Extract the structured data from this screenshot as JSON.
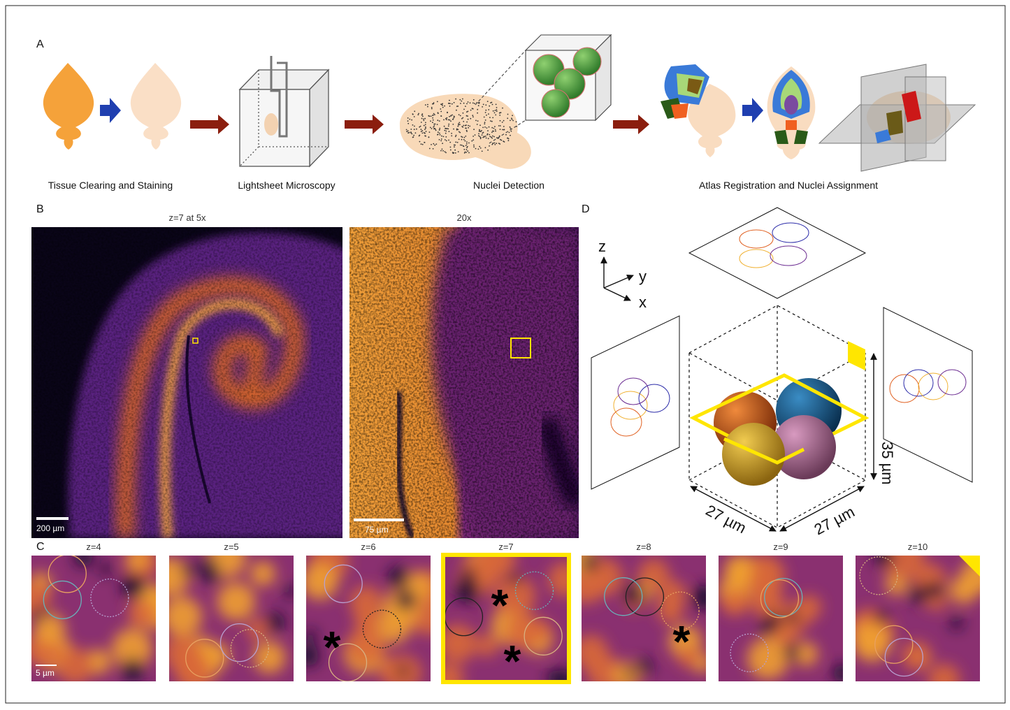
{
  "panels": {
    "A": {
      "label": "A",
      "steps": [
        "Tissue Clearing and Staining",
        "Lightsheet Microscopy",
        "Nuclei Detection",
        "Atlas Registration and Nuclei Assignment"
      ]
    },
    "B": {
      "label": "B",
      "images": [
        {
          "title": "z=7 at 5x",
          "scale_bar": "200 µm"
        },
        {
          "title": "20x",
          "scale_bar": "75 µm"
        }
      ]
    },
    "C": {
      "label": "C",
      "slices": [
        "z=4",
        "z=5",
        "z=6",
        "z=7",
        "z=8",
        "z=9",
        "z=10"
      ],
      "scale_bar": "5 µm",
      "marker": "*"
    },
    "D": {
      "label": "D",
      "axes": [
        "z",
        "y",
        "x"
      ],
      "dimensions": [
        "27 µm",
        "27 µm",
        "35 µm"
      ]
    }
  }
}
